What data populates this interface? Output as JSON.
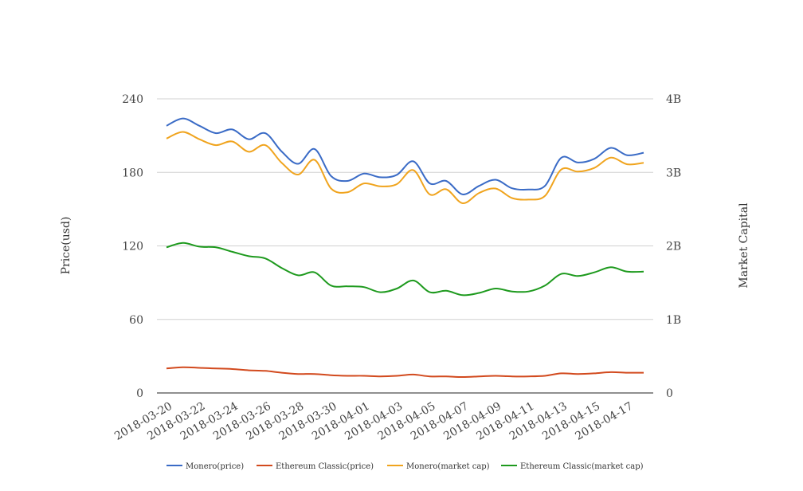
{
  "chart_data": {
    "type": "line",
    "title": "",
    "x": [
      "2018-03-20",
      "2018-03-21",
      "2018-03-22",
      "2018-03-23",
      "2018-03-24",
      "2018-03-25",
      "2018-03-26",
      "2018-03-27",
      "2018-03-28",
      "2018-03-29",
      "2018-03-30",
      "2018-03-31",
      "2018-04-01",
      "2018-04-02",
      "2018-04-03",
      "2018-04-04",
      "2018-04-05",
      "2018-04-06",
      "2018-04-07",
      "2018-04-08",
      "2018-04-09",
      "2018-04-10",
      "2018-04-11",
      "2018-04-12",
      "2018-04-13",
      "2018-04-14",
      "2018-04-15",
      "2018-04-16",
      "2018-04-17",
      "2018-04-18"
    ],
    "x_tick_labels": [
      "2018-03-20",
      "2018-03-22",
      "2018-03-24",
      "2018-03-26",
      "2018-03-28",
      "2018-03-30",
      "2018-04-01",
      "2018-04-03",
      "2018-04-05",
      "2018-04-07",
      "2018-04-09",
      "2018-04-11",
      "2018-04-13",
      "2018-04-15",
      "2018-04-17"
    ],
    "y_left": {
      "label": "Price(usd)",
      "ylim": [
        0,
        240
      ],
      "ticks": [
        0,
        60,
        120,
        180,
        240
      ],
      "tick_labels": [
        "0",
        "60",
        "120",
        "180",
        "240"
      ]
    },
    "y_right": {
      "label": "Market Capital",
      "ylim": [
        0,
        4000000000
      ],
      "ticks": [
        0,
        1000000000,
        2000000000,
        3000000000,
        4000000000
      ],
      "tick_labels": [
        "0",
        "1B",
        "2B",
        "3B",
        "4B"
      ]
    },
    "grid": true,
    "legend_position": "bottom",
    "series": [
      {
        "name": "Monero(price)",
        "axis": "left",
        "color": "#3a6bc6",
        "values": [
          218,
          224,
          218,
          212,
          215,
          207,
          212,
          197,
          187,
          199,
          177,
          173,
          179,
          176,
          178,
          189,
          171,
          173,
          162,
          169,
          174,
          167,
          166,
          169,
          192,
          188,
          191,
          200,
          194,
          196
        ]
      },
      {
        "name": "Ethereum Classic(price)",
        "axis": "left",
        "color": "#d24a1e",
        "values": [
          20,
          21,
          20.5,
          20,
          19.5,
          18.5,
          18,
          16.5,
          15.5,
          15.5,
          14.5,
          14,
          14,
          13.5,
          14,
          15,
          13.5,
          13.5,
          13,
          13.5,
          14,
          13.5,
          13.5,
          14,
          16,
          15.5,
          16,
          17,
          16.5,
          16.5
        ]
      },
      {
        "name": "Monero(market cap)",
        "axis": "right",
        "color": "#f0a41e",
        "values": [
          3460000000,
          3550000000,
          3450000000,
          3370000000,
          3420000000,
          3280000000,
          3370000000,
          3130000000,
          2970000000,
          3170000000,
          2780000000,
          2730000000,
          2850000000,
          2810000000,
          2840000000,
          3030000000,
          2700000000,
          2770000000,
          2580000000,
          2720000000,
          2780000000,
          2650000000,
          2630000000,
          2680000000,
          3040000000,
          3010000000,
          3060000000,
          3200000000,
          3110000000,
          3130000000
        ]
      },
      {
        "name": "Ethereum Classic(market cap)",
        "axis": "right",
        "color": "#1e9a1e",
        "values": [
          1980000000,
          2040000000,
          1990000000,
          1980000000,
          1920000000,
          1860000000,
          1830000000,
          1700000000,
          1600000000,
          1640000000,
          1460000000,
          1450000000,
          1440000000,
          1370000000,
          1420000000,
          1530000000,
          1370000000,
          1390000000,
          1330000000,
          1360000000,
          1420000000,
          1380000000,
          1380000000,
          1460000000,
          1620000000,
          1590000000,
          1640000000,
          1710000000,
          1650000000,
          1650000000
        ]
      }
    ]
  }
}
